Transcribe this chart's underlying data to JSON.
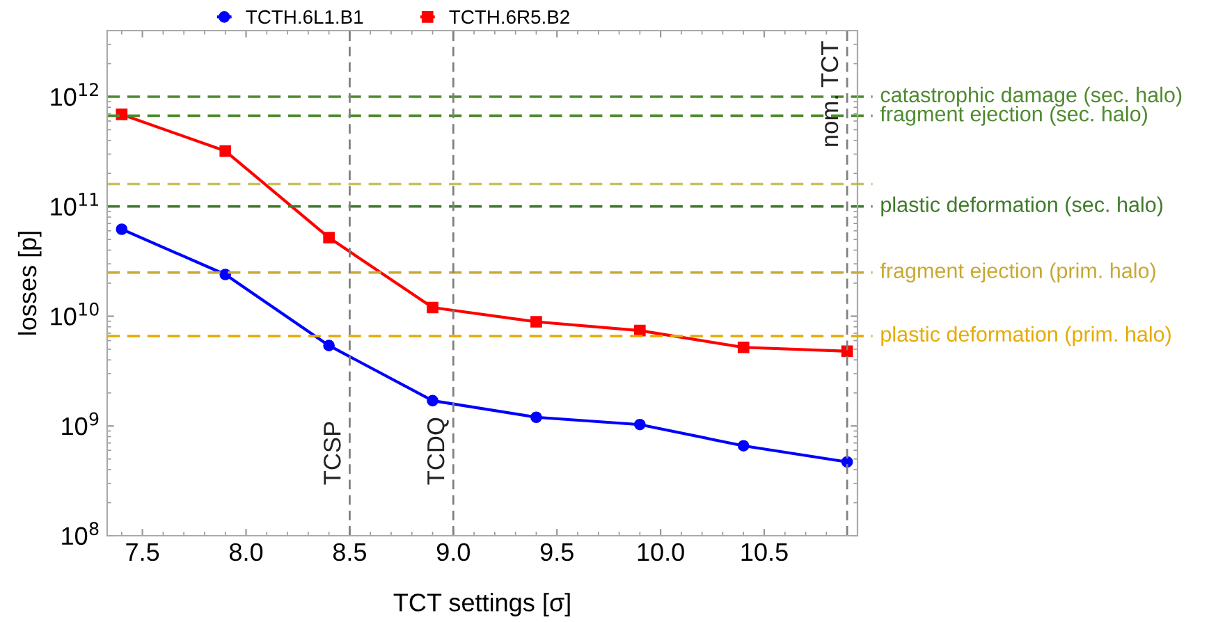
{
  "chart_data": {
    "type": "line",
    "xlabel": "TCT settings [σ]",
    "ylabel": "losses [p]",
    "x": [
      7.4,
      7.9,
      8.4,
      8.9,
      9.4,
      9.9,
      10.4,
      10.9
    ],
    "series": [
      {
        "name": "TCTH.6L1.B1",
        "color": "#0000ff",
        "marker": "circle",
        "values": [
          62000000000.0,
          24000000000.0,
          5400000000.0,
          1700000000.0,
          1200000000.0,
          1030000000.0,
          660000000.0,
          470000000.0
        ]
      },
      {
        "name": "TCTH.6R5.B2",
        "color": "#ff0000",
        "marker": "square",
        "values": [
          690000000000.0,
          320000000000.0,
          52000000000.0,
          12000000000.0,
          8900000000.0,
          7400000000.0,
          5200000000.0,
          4800000000.0
        ]
      }
    ],
    "log": "y",
    "xlim": [
      7.33,
      10.95
    ],
    "ylim": [
      100000000.0,
      4000000000000.0
    ],
    "xticks": [
      {
        "value": 7.5,
        "label": "7.5"
      },
      {
        "value": 8.0,
        "label": "8.0"
      },
      {
        "value": 8.5,
        "label": "8.5"
      },
      {
        "value": 9.0,
        "label": "9.0"
      },
      {
        "value": 9.5,
        "label": "9.5"
      },
      {
        "value": 10.0,
        "label": "10.0"
      },
      {
        "value": 10.5,
        "label": "10.5"
      }
    ],
    "yticks": [
      {
        "value": 100000000.0,
        "label": "10$^{8}$"
      },
      {
        "value": 1000000000.0,
        "label": "10$^{9}$"
      },
      {
        "value": 10000000000.0,
        "label": "10$^{10}$"
      },
      {
        "value": 100000000000.0,
        "label": "10$^{11}$"
      },
      {
        "value": 1000000000000.0,
        "label": "10$^{12}$"
      }
    ],
    "ref_lines": [
      {
        "axis": "y",
        "value": 1000000000000.0,
        "label": "catastrophic damage (sec. halo)",
        "color": "#4e8a2e",
        "line_style": "dashed"
      },
      {
        "axis": "y",
        "value": 670000000000.0,
        "label": "fragment ejection (sec. halo)",
        "color": "#4e8a2e",
        "line_style": "dashed"
      },
      {
        "axis": "y",
        "value": 160000000000.0,
        "color": "#c8c060",
        "line_style": "dashed"
      },
      {
        "axis": "y",
        "value": 100000000000.0,
        "label": "plastic deformation (sec. halo)",
        "color": "#3f7a2a",
        "line_style": "dashed"
      },
      {
        "axis": "y",
        "value": 25000000000.0,
        "label": "fragment ejection (prim. halo)",
        "color": "#c8a832",
        "line_style": "dashed"
      },
      {
        "axis": "y",
        "value": 6600000000.0,
        "label": "plastic deformation (prim. halo)",
        "color": "#e6aa00",
        "line_style": "dashed"
      },
      {
        "axis": "x",
        "value": 8.5,
        "label": "TCSP",
        "color": "#808080",
        "line_style": "dashed"
      },
      {
        "axis": "x",
        "value": 9.0,
        "label": "TCDQ",
        "color": "#808080",
        "line_style": "dashed"
      },
      {
        "axis": "x",
        "value": 10.9,
        "label": "nom. TCT",
        "color": "#808080",
        "line_style": "dashed"
      }
    ],
    "grid": false,
    "legend": "top"
  }
}
